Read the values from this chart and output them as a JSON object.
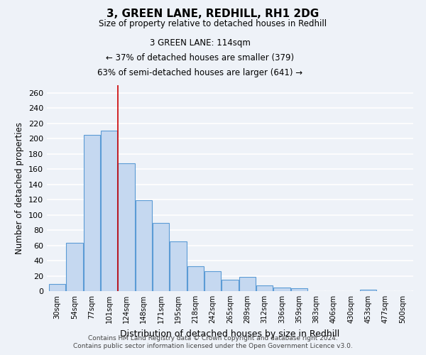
{
  "title": "3, GREEN LANE, REDHILL, RH1 2DG",
  "subtitle": "Size of property relative to detached houses in Redhill",
  "xlabel": "Distribution of detached houses by size in Redhill",
  "ylabel": "Number of detached properties",
  "bar_color": "#c5d8f0",
  "bar_edge_color": "#5b9bd5",
  "categories": [
    "30sqm",
    "54sqm",
    "77sqm",
    "101sqm",
    "124sqm",
    "148sqm",
    "171sqm",
    "195sqm",
    "218sqm",
    "242sqm",
    "265sqm",
    "289sqm",
    "312sqm",
    "336sqm",
    "359sqm",
    "383sqm",
    "406sqm",
    "430sqm",
    "453sqm",
    "477sqm",
    "500sqm"
  ],
  "values": [
    9,
    63,
    205,
    210,
    168,
    119,
    89,
    65,
    33,
    26,
    15,
    19,
    7,
    5,
    4,
    0,
    0,
    0,
    2,
    0,
    0
  ],
  "ylim": [
    0,
    270
  ],
  "yticks": [
    0,
    20,
    40,
    60,
    80,
    100,
    120,
    140,
    160,
    180,
    200,
    220,
    240,
    260
  ],
  "annotation_text": "   3 GREEN LANE: 114sqm\n← 37% of detached houses are smaller (379)\n63% of semi-detached houses are larger (641) →",
  "annotation_border_color": "#cc0000",
  "vline_x": 3.5,
  "vline_color": "#cc0000",
  "footer_line1": "Contains HM Land Registry data © Crown copyright and database right 2024.",
  "footer_line2": "Contains public sector information licensed under the Open Government Licence v3.0.",
  "background_color": "#eef2f8",
  "grid_color": "white"
}
